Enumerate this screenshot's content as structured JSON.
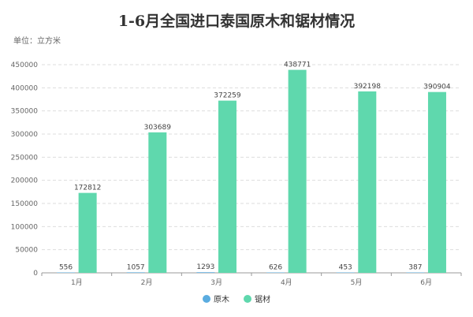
{
  "chart_data": {
    "type": "bar",
    "title": "1-6月全国进口泰国原木和锯材情况",
    "unit_label": "单位：立方米",
    "categories": [
      "1月",
      "2月",
      "3月",
      "4月",
      "5月",
      "6月"
    ],
    "series": [
      {
        "name": "原木",
        "color": "#5aace0",
        "values": [
          556,
          1057,
          1293,
          626,
          453,
          387
        ]
      },
      {
        "name": "锯材",
        "color": "#5fd8ad",
        "values": [
          172812,
          303689,
          372259,
          438771,
          392198,
          390904
        ]
      }
    ],
    "ylim": [
      0,
      450000
    ],
    "yticks": [
      0,
      50000,
      100000,
      150000,
      200000,
      250000,
      300000,
      350000,
      400000,
      450000
    ],
    "grid": true,
    "legend_position": "bottom"
  }
}
